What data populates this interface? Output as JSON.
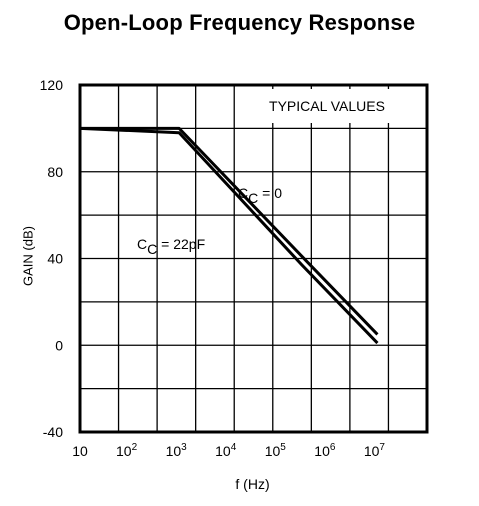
{
  "chart_data": {
    "type": "line",
    "title": "Open-Loop Frequency Response",
    "xlabel": "f (Hz)",
    "ylabel": "GAIN (dB)",
    "xscale": "log",
    "xlim": [
      10,
      100000000
    ],
    "ylim": [
      -40,
      120
    ],
    "grid": true,
    "y_ticks": [
      "120",
      "80",
      "40",
      "0",
      "-40"
    ],
    "x_ticks": [
      {
        "base": "10",
        "exp": ""
      },
      {
        "base": "10",
        "exp": "2"
      },
      {
        "base": "10",
        "exp": "3"
      },
      {
        "base": "10",
        "exp": "4"
      },
      {
        "base": "10",
        "exp": "5"
      },
      {
        "base": "10",
        "exp": "6"
      },
      {
        "base": "10",
        "exp": "7"
      }
    ],
    "annotations": {
      "box_label": "TYPICAL VALUES",
      "cc0": {
        "prefix": "C",
        "sub": "C",
        "suffix": " = 0"
      },
      "cc22": {
        "prefix": "C",
        "sub": "C",
        "suffix": " = 22pF"
      }
    },
    "series": [
      {
        "x": [
          10,
          1000,
          400000,
          10000000
        ],
        "y": [
          100,
          100,
          38,
          5
        ]
      },
      {
        "x": [
          10,
          1000,
          300000,
          10000000
        ],
        "y": [
          100,
          98,
          37,
          1
        ]
      }
    ]
  }
}
